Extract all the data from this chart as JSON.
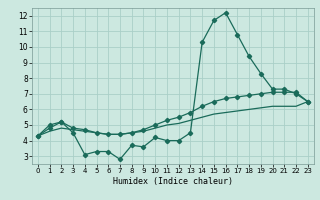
{
  "title": "",
  "xlabel": "Humidex (Indice chaleur)",
  "ylabel": "",
  "bg_color": "#cce8e0",
  "grid_color": "#aacfc8",
  "line_color": "#1a6b5a",
  "xlim": [
    -0.5,
    23.5
  ],
  "ylim": [
    2.5,
    12.5
  ],
  "xticks": [
    0,
    1,
    2,
    3,
    4,
    5,
    6,
    7,
    8,
    9,
    10,
    11,
    12,
    13,
    14,
    15,
    16,
    17,
    18,
    19,
    20,
    21,
    22,
    23
  ],
  "yticks": [
    3,
    4,
    5,
    6,
    7,
    8,
    9,
    10,
    11,
    12
  ],
  "line1_x": [
    0,
    1,
    2,
    3,
    4,
    5,
    6,
    7,
    8,
    9,
    10,
    11,
    12,
    13,
    14,
    15,
    16,
    17,
    18,
    19,
    20,
    21,
    22,
    23
  ],
  "line1_y": [
    4.3,
    5.0,
    5.2,
    4.5,
    3.1,
    3.3,
    3.3,
    2.8,
    3.7,
    3.6,
    4.2,
    4.0,
    4.0,
    4.5,
    10.3,
    11.7,
    12.2,
    10.8,
    9.4,
    8.3,
    7.3,
    7.3,
    7.0,
    6.5
  ],
  "line2_x": [
    0,
    1,
    2,
    3,
    4,
    5,
    6,
    7,
    8,
    9,
    10,
    11,
    12,
    13,
    14,
    15,
    16,
    17,
    18,
    19,
    20,
    21,
    22,
    23
  ],
  "line2_y": [
    4.3,
    4.8,
    5.2,
    4.8,
    4.7,
    4.5,
    4.4,
    4.4,
    4.5,
    4.7,
    5.0,
    5.3,
    5.5,
    5.8,
    6.2,
    6.5,
    6.7,
    6.8,
    6.9,
    7.0,
    7.1,
    7.1,
    7.1,
    6.5
  ],
  "line3_x": [
    0,
    1,
    2,
    3,
    4,
    5,
    6,
    7,
    8,
    9,
    10,
    11,
    12,
    13,
    14,
    15,
    16,
    17,
    18,
    19,
    20,
    21,
    22,
    23
  ],
  "line3_y": [
    4.3,
    4.6,
    4.8,
    4.7,
    4.6,
    4.5,
    4.4,
    4.4,
    4.5,
    4.6,
    4.8,
    5.0,
    5.1,
    5.3,
    5.5,
    5.7,
    5.8,
    5.9,
    6.0,
    6.1,
    6.2,
    6.2,
    6.2,
    6.5
  ],
  "marker": "D",
  "markersize": 2.2,
  "linewidth": 0.9
}
